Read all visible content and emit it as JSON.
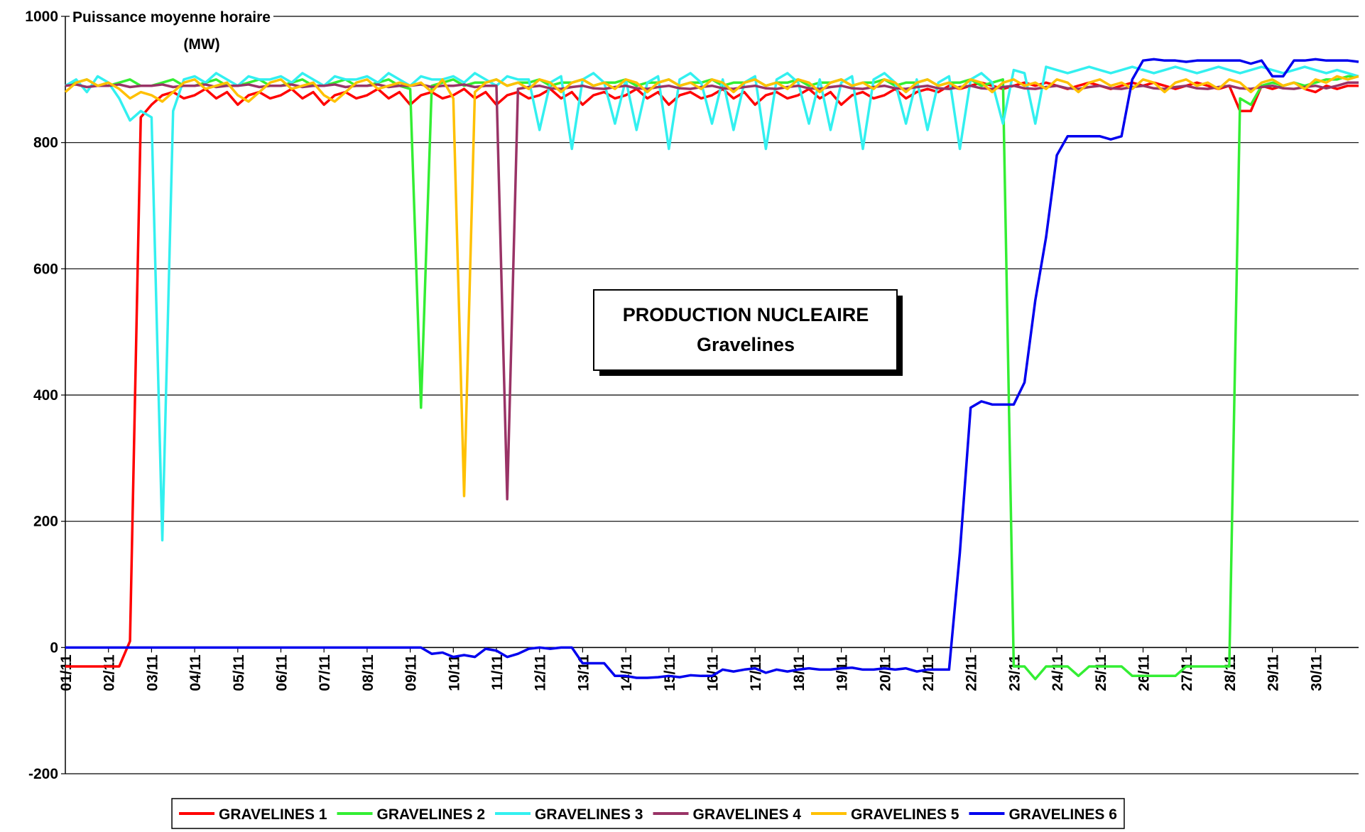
{
  "chart_data": {
    "type": "line",
    "title": "PRODUCTION NUCLEAIRE",
    "subtitle": "Gravelines",
    "ylabel": [
      "Puissance moyenne horaire",
      "(MW)"
    ],
    "xlim": [
      0,
      30
    ],
    "ylim": [
      -200,
      1000
    ],
    "yticks": [
      -200,
      0,
      200,
      400,
      600,
      800,
      1000
    ],
    "xticks": [
      {
        "value": 0,
        "label": "01/11"
      },
      {
        "value": 1,
        "label": "02/11"
      },
      {
        "value": 2,
        "label": "03/11"
      },
      {
        "value": 3,
        "label": "04/11"
      },
      {
        "value": 4,
        "label": "05/11"
      },
      {
        "value": 5,
        "label": "06/11"
      },
      {
        "value": 6,
        "label": "07/11"
      },
      {
        "value": 7,
        "label": "08/11"
      },
      {
        "value": 8,
        "label": "09/11"
      },
      {
        "value": 9,
        "label": "10/11"
      },
      {
        "value": 10,
        "label": "11/11"
      },
      {
        "value": 11,
        "label": "12/11"
      },
      {
        "value": 12,
        "label": "13/11"
      },
      {
        "value": 13,
        "label": "14/11"
      },
      {
        "value": 14,
        "label": "15/11"
      },
      {
        "value": 15,
        "label": "16/11"
      },
      {
        "value": 16,
        "label": "17/11"
      },
      {
        "value": 17,
        "label": "18/11"
      },
      {
        "value": 18,
        "label": "19/11"
      },
      {
        "value": 19,
        "label": "20/11"
      },
      {
        "value": 20,
        "label": "21/11"
      },
      {
        "value": 21,
        "label": "22/11"
      },
      {
        "value": 22,
        "label": "23/11"
      },
      {
        "value": 23,
        "label": "24/11"
      },
      {
        "value": 24,
        "label": "25/11"
      },
      {
        "value": 25,
        "label": "26/11"
      },
      {
        "value": 26,
        "label": "27/11"
      },
      {
        "value": 27,
        "label": "28/11"
      },
      {
        "value": 28,
        "label": "29/11"
      },
      {
        "value": 29,
        "label": "30/11"
      }
    ],
    "grid": true,
    "legend": "bottom",
    "x": [
      0,
      0.25,
      0.5,
      0.75,
      1,
      1.25,
      1.5,
      1.75,
      2,
      2.25,
      2.5,
      2.75,
      3,
      3.25,
      3.5,
      3.75,
      4,
      4.25,
      4.5,
      4.75,
      5,
      5.25,
      5.5,
      5.75,
      6,
      6.25,
      6.5,
      6.75,
      7,
      7.25,
      7.5,
      7.75,
      8,
      8.25,
      8.5,
      8.75,
      9,
      9.25,
      9.5,
      9.75,
      10,
      10.25,
      10.5,
      10.75,
      11,
      11.25,
      11.5,
      11.75,
      12,
      12.25,
      12.5,
      12.75,
      13,
      13.25,
      13.5,
      13.75,
      14,
      14.25,
      14.5,
      14.75,
      15,
      15.25,
      15.5,
      15.75,
      16,
      16.25,
      16.5,
      16.75,
      17,
      17.25,
      17.5,
      17.75,
      18,
      18.25,
      18.5,
      18.75,
      19,
      19.25,
      19.5,
      19.75,
      20,
      20.25,
      20.5,
      20.75,
      21,
      21.25,
      21.5,
      21.75,
      22,
      22.25,
      22.5,
      22.75,
      23,
      23.25,
      23.5,
      23.75,
      24,
      24.25,
      24.5,
      24.75,
      25,
      25.25,
      25.5,
      25.75,
      26,
      26.25,
      26.5,
      26.75,
      27,
      27.25,
      27.5,
      27.75,
      28,
      28.25,
      28.5,
      28.75,
      29,
      29.25,
      29.5,
      29.75,
      30
    ],
    "series": [
      {
        "name": "GRAVELINES 1",
        "color": "#ff0000",
        "values": [
          -30,
          -30,
          -30,
          -30,
          -30,
          -30,
          10,
          840,
          860,
          875,
          880,
          870,
          875,
          885,
          870,
          880,
          860,
          875,
          880,
          870,
          875,
          885,
          870,
          880,
          860,
          875,
          880,
          870,
          875,
          885,
          870,
          880,
          860,
          875,
          880,
          870,
          875,
          885,
          870,
          880,
          860,
          875,
          880,
          870,
          875,
          885,
          870,
          880,
          860,
          875,
          880,
          870,
          875,
          885,
          870,
          880,
          860,
          875,
          880,
          870,
          875,
          885,
          870,
          880,
          860,
          875,
          880,
          870,
          875,
          885,
          870,
          880,
          860,
          875,
          880,
          870,
          875,
          885,
          870,
          880,
          885,
          880,
          890,
          885,
          890,
          895,
          890,
          885,
          890,
          895,
          890,
          895,
          890,
          885,
          890,
          895,
          890,
          885,
          890,
          895,
          890,
          895,
          890,
          885,
          890,
          895,
          890,
          885,
          890,
          850,
          850,
          890,
          885,
          890,
          895,
          885,
          880,
          890,
          885,
          890,
          890
        ]
      },
      {
        "name": "GRAVELINES 2",
        "color": "#33ee33",
        "values": [
          890,
          895,
          900,
          890,
          890,
          895,
          900,
          890,
          890,
          895,
          900,
          890,
          890,
          895,
          900,
          890,
          890,
          895,
          900,
          890,
          890,
          895,
          900,
          890,
          890,
          895,
          900,
          890,
          890,
          895,
          900,
          890,
          885,
          380,
          890,
          895,
          900,
          890,
          895,
          895,
          900,
          890,
          895,
          895,
          900,
          890,
          895,
          895,
          900,
          890,
          895,
          895,
          900,
          890,
          895,
          895,
          900,
          890,
          895,
          895,
          900,
          890,
          895,
          895,
          900,
          890,
          895,
          895,
          900,
          890,
          895,
          895,
          900,
          890,
          895,
          895,
          900,
          890,
          895,
          895,
          900,
          890,
          895,
          895,
          900,
          890,
          895,
          900,
          -30,
          -30,
          -50,
          -30,
          -30,
          -30,
          -45,
          -30,
          -30,
          -30,
          -30,
          -45,
          -45,
          -45,
          -45,
          -45,
          -30,
          -30,
          -30,
          -30,
          -30,
          870,
          860,
          890,
          895,
          890,
          895,
          890,
          895,
          900,
          900,
          905,
          905
        ]
      },
      {
        "name": "GRAVELINES 3",
        "color": "#33f0f0",
        "values": [
          890,
          900,
          880,
          905,
          895,
          870,
          835,
          850,
          840,
          170,
          850,
          900,
          905,
          895,
          910,
          900,
          890,
          905,
          900,
          900,
          905,
          895,
          910,
          900,
          890,
          905,
          900,
          900,
          905,
          895,
          910,
          900,
          890,
          905,
          900,
          900,
          905,
          895,
          910,
          900,
          890,
          905,
          900,
          900,
          820,
          895,
          905,
          790,
          900,
          910,
          895,
          830,
          900,
          820,
          895,
          905,
          790,
          900,
          910,
          895,
          830,
          900,
          820,
          895,
          905,
          790,
          900,
          910,
          895,
          830,
          900,
          820,
          895,
          905,
          790,
          900,
          910,
          895,
          830,
          900,
          820,
          895,
          905,
          790,
          900,
          910,
          895,
          830,
          915,
          910,
          830,
          920,
          915,
          910,
          915,
          920,
          915,
          910,
          915,
          920,
          915,
          910,
          915,
          920,
          915,
          910,
          915,
          920,
          915,
          910,
          915,
          920,
          915,
          910,
          915,
          920,
          915,
          910,
          915,
          910,
          905
        ]
      },
      {
        "name": "GRAVELINES 4",
        "color": "#993366",
        "values": [
          890,
          892,
          888,
          890,
          890,
          892,
          888,
          890,
          890,
          892,
          888,
          890,
          890,
          892,
          888,
          890,
          890,
          892,
          888,
          890,
          890,
          892,
          888,
          890,
          890,
          892,
          888,
          890,
          890,
          892,
          888,
          890,
          890,
          892,
          888,
          890,
          890,
          892,
          888,
          890,
          890,
          235,
          885,
          888,
          890,
          886,
          885,
          888,
          890,
          886,
          885,
          888,
          890,
          886,
          885,
          888,
          890,
          886,
          885,
          888,
          890,
          886,
          885,
          888,
          890,
          886,
          885,
          888,
          890,
          886,
          885,
          888,
          890,
          886,
          885,
          888,
          890,
          886,
          885,
          888,
          890,
          886,
          885,
          888,
          890,
          886,
          885,
          888,
          890,
          886,
          885,
          888,
          890,
          886,
          885,
          888,
          890,
          886,
          885,
          888,
          890,
          886,
          885,
          888,
          890,
          886,
          885,
          888,
          890,
          886,
          885,
          888,
          890,
          886,
          885,
          888,
          890,
          886,
          890,
          895,
          895
        ]
      },
      {
        "name": "GRAVELINES 5",
        "color": "#ffc000",
        "values": [
          880,
          895,
          900,
          890,
          895,
          885,
          870,
          880,
          875,
          865,
          880,
          895,
          900,
          885,
          890,
          895,
          875,
          865,
          880,
          895,
          900,
          885,
          890,
          895,
          875,
          865,
          880,
          895,
          900,
          885,
          890,
          895,
          890,
          895,
          880,
          900,
          870,
          240,
          880,
          895,
          900,
          890,
          895,
          885,
          900,
          895,
          880,
          895,
          900,
          890,
          895,
          885,
          900,
          895,
          880,
          895,
          900,
          890,
          895,
          885,
          900,
          895,
          880,
          895,
          900,
          890,
          895,
          885,
          900,
          895,
          880,
          895,
          900,
          890,
          895,
          885,
          900,
          895,
          880,
          895,
          900,
          890,
          895,
          885,
          900,
          895,
          880,
          895,
          900,
          890,
          895,
          885,
          900,
          895,
          880,
          895,
          900,
          890,
          895,
          885,
          900,
          895,
          880,
          895,
          900,
          890,
          895,
          885,
          900,
          895,
          880,
          895,
          900,
          890,
          895,
          885,
          900,
          895,
          905,
          900,
          905
        ]
      },
      {
        "name": "GRAVELINES 6",
        "color": "#0000ee",
        "values": [
          0,
          0,
          0,
          0,
          0,
          0,
          0,
          0,
          0,
          0,
          0,
          0,
          0,
          0,
          0,
          0,
          0,
          0,
          0,
          0,
          0,
          0,
          0,
          0,
          0,
          0,
          0,
          0,
          0,
          0,
          0,
          0,
          0,
          0,
          -10,
          -8,
          -15,
          -12,
          -15,
          -2,
          -5,
          -15,
          -10,
          -2,
          0,
          -2,
          0,
          0,
          -25,
          -25,
          -25,
          -45,
          -45,
          -48,
          -48,
          -47,
          -45,
          -47,
          -44,
          -45,
          -45,
          -35,
          -38,
          -35,
          -33,
          -40,
          -35,
          -38,
          -35,
          -33,
          -35,
          -35,
          -33,
          -32,
          -35,
          -35,
          -33,
          -35,
          -33,
          -38,
          -35,
          -35,
          -35,
          150,
          380,
          390,
          385,
          385,
          385,
          420,
          550,
          650,
          780,
          810,
          810,
          810,
          810,
          805,
          810,
          900,
          930,
          932,
          930,
          930,
          928,
          930,
          930,
          930,
          930,
          930,
          925,
          930,
          905,
          905,
          930,
          930,
          932,
          930,
          930,
          930,
          928
        ]
      }
    ]
  }
}
